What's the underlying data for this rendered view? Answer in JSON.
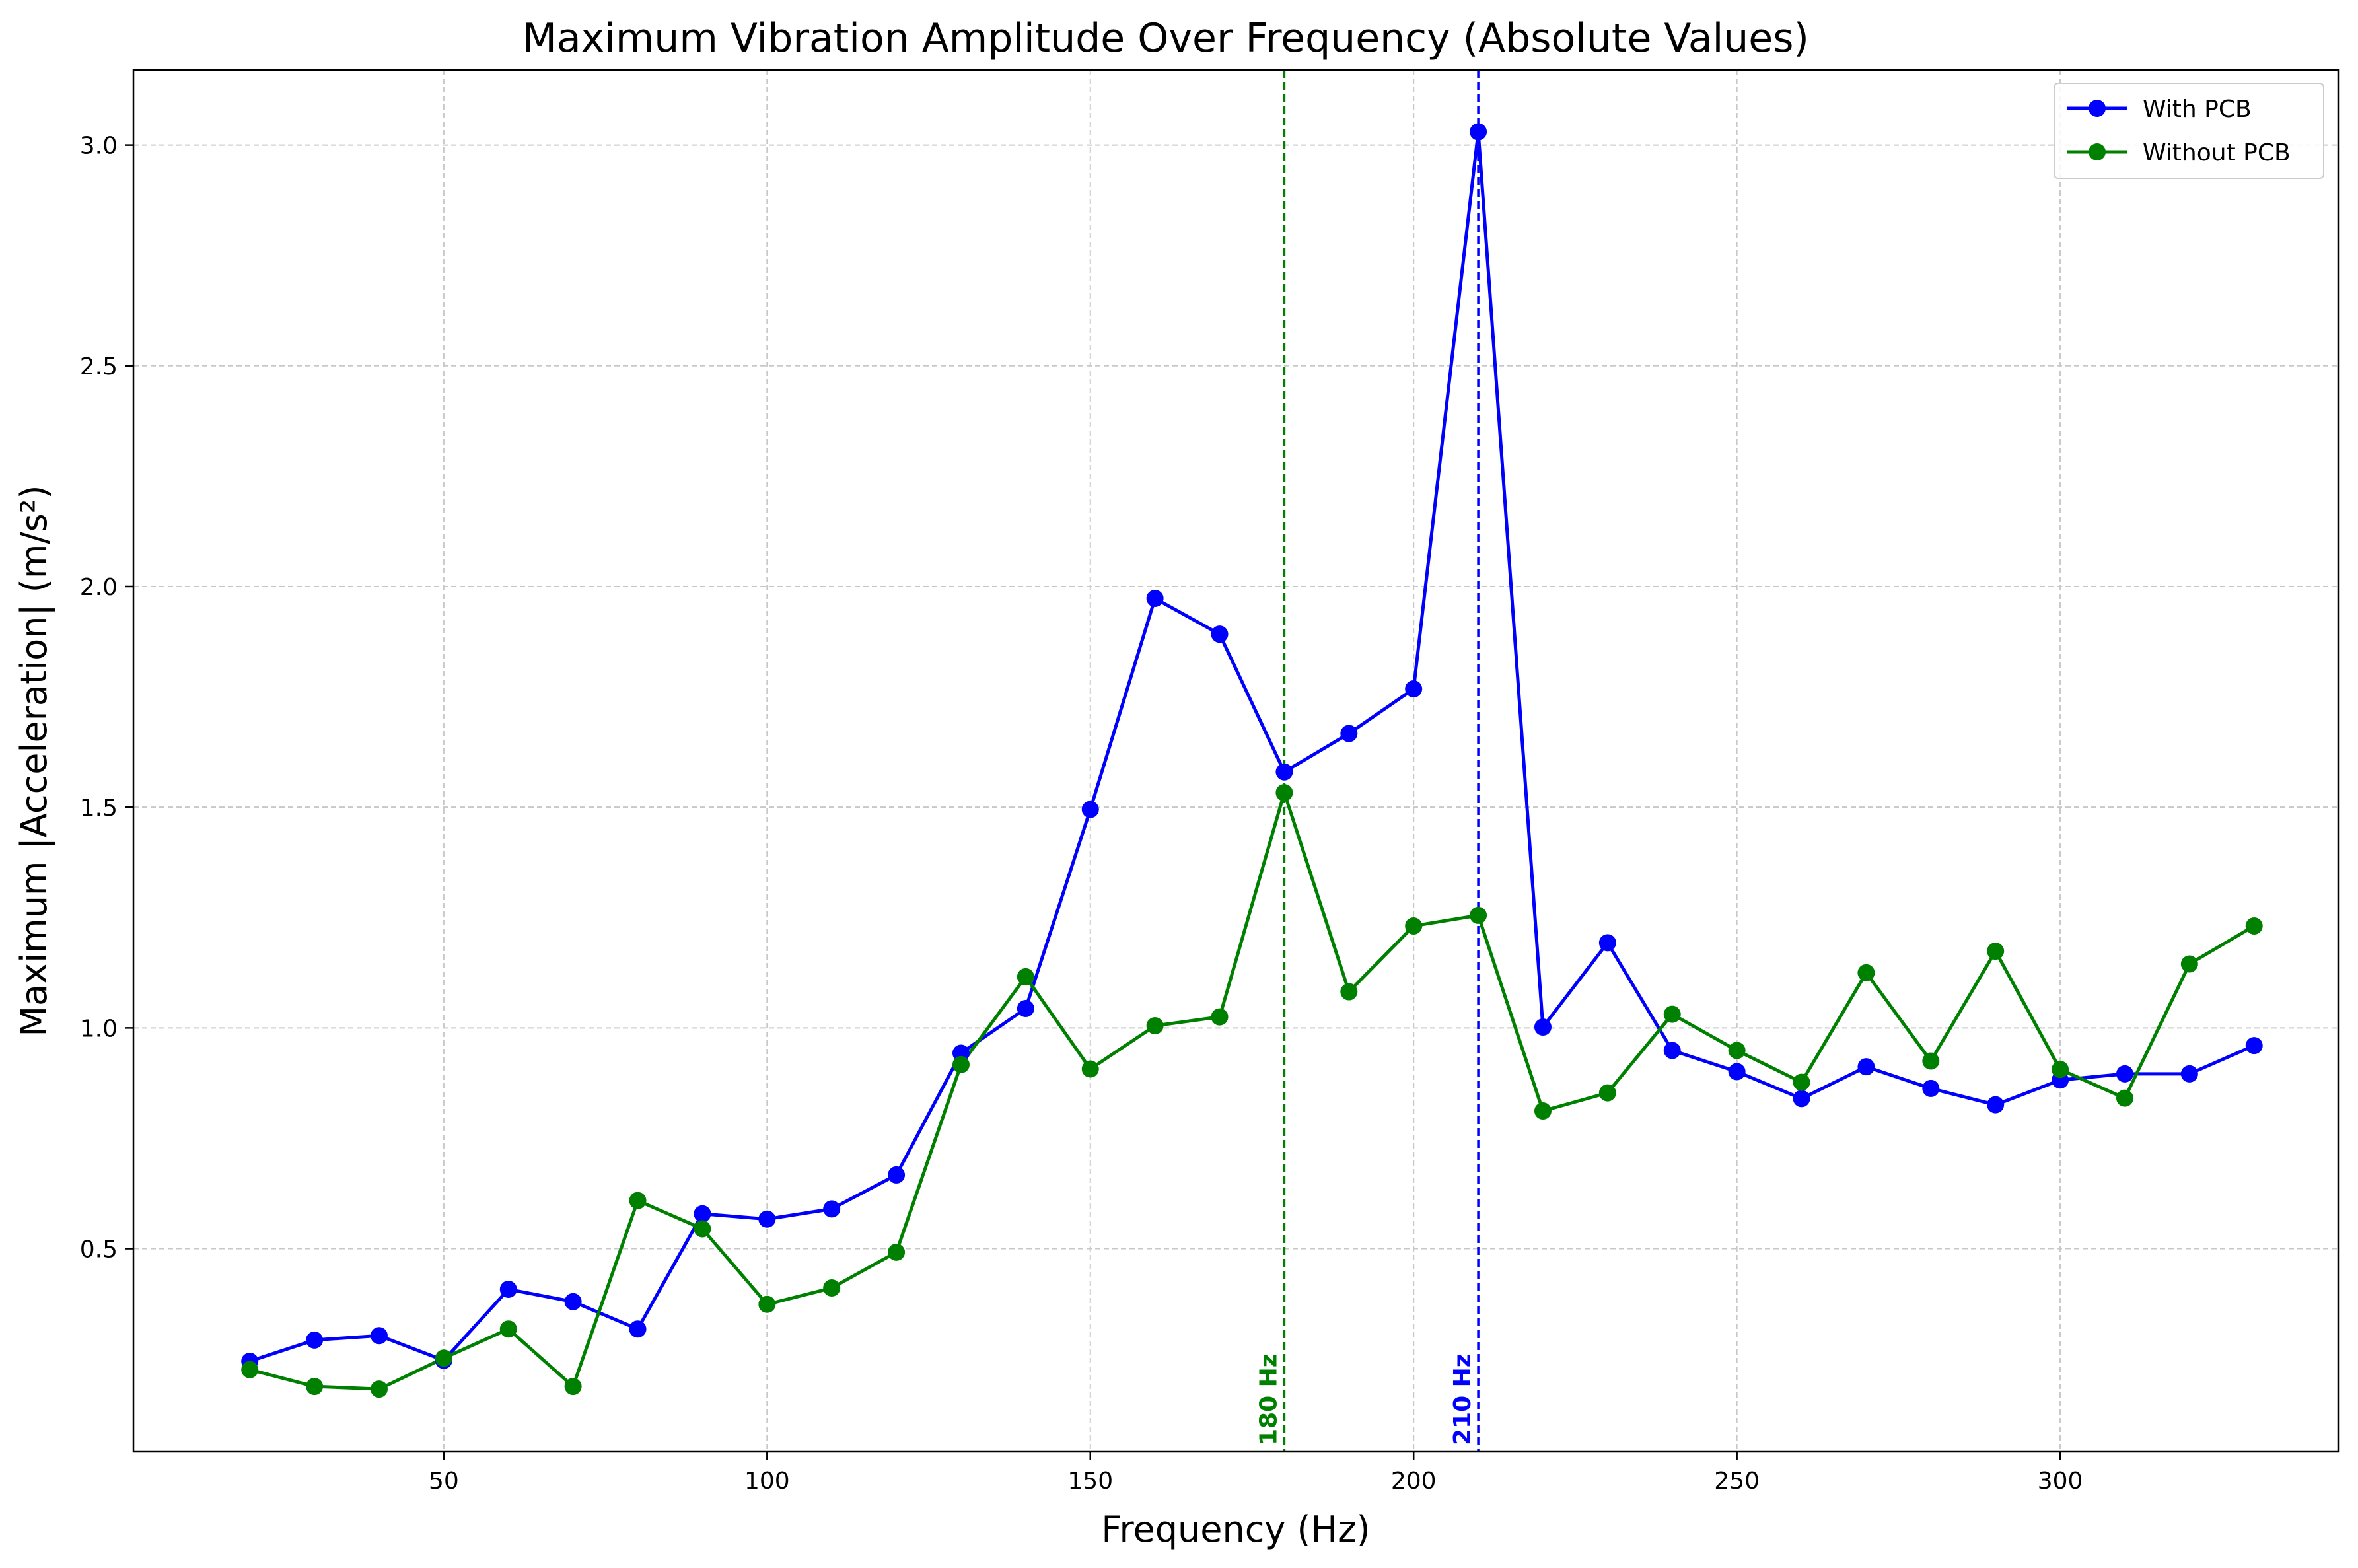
{
  "chart_data": {
    "type": "line",
    "title": "Maximum Vibration Amplitude Over Frequency (Absolute Values)",
    "xlabel": "Frequency (Hz)",
    "ylabel": "Maximum |Acceleration| (m/s²)",
    "xlim": [
      2,
      343
    ],
    "ylim": [
      0.04,
      3.17
    ],
    "xticks": [
      50,
      100,
      150,
      200,
      250,
      300
    ],
    "yticks": [
      0.5,
      1.0,
      1.5,
      2.0,
      2.5,
      3.0
    ],
    "xtick_labels": [
      "50",
      "100",
      "150",
      "200",
      "250",
      "300"
    ],
    "ytick_labels": [
      "0.5",
      "1.0",
      "1.5",
      "2.0",
      "2.5",
      "3.0"
    ],
    "grid": true,
    "legend_position": "top-right",
    "x": [
      20,
      30,
      40,
      50,
      60,
      70,
      80,
      90,
      100,
      110,
      120,
      130,
      140,
      150,
      160,
      170,
      180,
      190,
      200,
      210,
      220,
      230,
      240,
      250,
      260,
      270,
      280,
      290,
      300,
      310,
      320,
      330
    ],
    "series": [
      {
        "name": "With PCB",
        "color": "#0000ff",
        "values": [
          0.245,
          0.293,
          0.303,
          0.247,
          0.408,
          0.38,
          0.318,
          0.579,
          0.567,
          0.59,
          0.667,
          0.943,
          1.044,
          1.495,
          1.973,
          1.892,
          1.58,
          1.667,
          1.768,
          3.03,
          1.002,
          1.193,
          0.949,
          0.901,
          0.84,
          0.912,
          0.863,
          0.826,
          0.882,
          0.896,
          0.896,
          0.96
        ]
      },
      {
        "name": "Without PCB",
        "color": "#008000",
        "values": [
          0.226,
          0.188,
          0.182,
          0.252,
          0.318,
          0.188,
          0.609,
          0.545,
          0.374,
          0.411,
          0.492,
          0.917,
          1.116,
          0.907,
          1.005,
          1.025,
          1.533,
          1.082,
          1.231,
          1.255,
          0.812,
          0.853,
          1.031,
          0.949,
          0.877,
          1.125,
          0.925,
          1.174,
          0.906,
          0.841,
          1.145,
          1.231
        ]
      }
    ],
    "annotations": [
      {
        "x": 180,
        "label": "180 Hz",
        "color": "#008000"
      },
      {
        "x": 210,
        "label": "210 Hz",
        "color": "#0000ff"
      }
    ]
  }
}
